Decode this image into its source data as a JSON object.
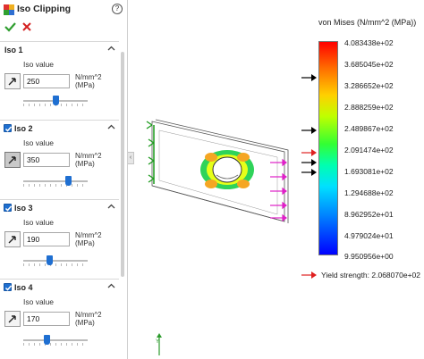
{
  "panel": {
    "title": "Iso Clipping",
    "help": "?",
    "groups": [
      {
        "name": "Iso 1",
        "checkbox": false,
        "field_label": "Iso value",
        "value": "250",
        "unit_line1": "N/mm^2",
        "unit_line2": "(MPa)",
        "slider_level": 0.5,
        "button_pressed": false
      },
      {
        "name": "Iso 2",
        "checkbox": true,
        "field_label": "Iso value",
        "value": "350",
        "unit_line1": "N/mm^2",
        "unit_line2": "(MPa)",
        "slider_level": 0.7,
        "button_pressed": true
      },
      {
        "name": "Iso 3",
        "checkbox": true,
        "field_label": "Iso value",
        "value": "190",
        "unit_line1": "N/mm^2",
        "unit_line2": "(MPa)",
        "slider_level": 0.4,
        "button_pressed": false
      },
      {
        "name": "Iso 4",
        "checkbox": true,
        "field_label": "Iso value",
        "value": "170",
        "unit_line1": "N/mm^2",
        "unit_line2": "(MPa)",
        "slider_level": 0.36,
        "button_pressed": false
      }
    ]
  },
  "legend": {
    "title": "von Mises (N/mm^2 (MPa))",
    "labels": [
      "4.083438e+02",
      "3.685045e+02",
      "3.286652e+02",
      "2.888259e+02",
      "2.489867e+02",
      "2.091474e+02",
      "1.693081e+02",
      "1.294688e+02",
      "8.962952e+01",
      "4.979024e+01",
      "9.950956e+00"
    ],
    "yield_text": "Yield strength: 2.068070e+02"
  },
  "colors": {
    "accent": "#1f6fd1",
    "ok": "#2f9e2f",
    "cancel": "#d42020",
    "yield": "#e02020",
    "marker": "#000000"
  },
  "icons": {
    "panel": "iso-clipping-icon",
    "help": "help-icon",
    "ok": "checkmark-icon",
    "cancel": "close-icon",
    "group_caret": "chevron-up-icon",
    "pick": "pointer-arrow-icon"
  }
}
